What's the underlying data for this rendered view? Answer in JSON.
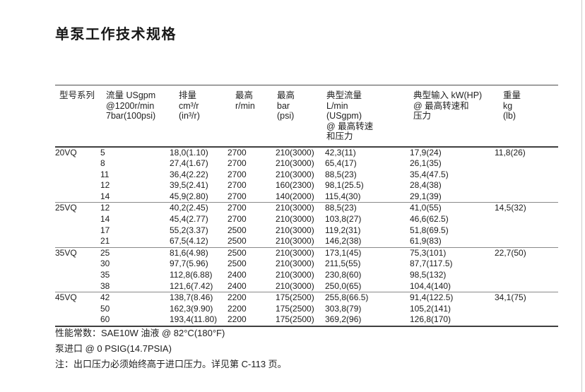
{
  "page": {
    "title": "单泵工作技术规格"
  },
  "table": {
    "headers": [
      {
        "lines": [
          "型号系列"
        ]
      },
      {
        "lines": [
          "流量 USgpm",
          "@1200r/min",
          "7bar(100psi)"
        ]
      },
      {
        "lines": [
          "排量",
          "cm³/r",
          "(in³/r)"
        ]
      },
      {
        "lines": [
          "最高",
          "r/min"
        ]
      },
      {
        "lines": [
          "最高",
          "bar",
          "(psi)"
        ]
      },
      {
        "lines": [
          "典型流量",
          "L/min",
          "(USgpm)",
          "@ 最高转速",
          "和压力"
        ]
      },
      {
        "lines": [
          "典型输入 kW(HP)",
          "@ 最高转速和",
          "压力"
        ]
      },
      {
        "lines": [
          "重量",
          "kg",
          "(lb)"
        ]
      }
    ],
    "sections": [
      {
        "model": "20VQ",
        "weight": "11,8(26)",
        "rows": [
          [
            "5",
            "18,0(1.10)",
            "2700",
            "210(3000)",
            "42,3(11)",
            "17,9(24)"
          ],
          [
            "8",
            "27,4(1.67)",
            "2700",
            "210(3000)",
            "65,4(17)",
            "26,1(35)"
          ],
          [
            "11",
            "36,4(2.22)",
            "2700",
            "210(3000)",
            "88,5(23)",
            "35,4(47.5)"
          ],
          [
            "12",
            "39,5(2.41)",
            "2700",
            "160(2300)",
            "98,1(25.5)",
            "28,4(38)"
          ],
          [
            "14",
            "45,9(2.80)",
            "2700",
            "140(2000)",
            "115,4(30)",
            "29,1(39)"
          ]
        ]
      },
      {
        "model": "25VQ",
        "weight": "14,5(32)",
        "rows": [
          [
            "12",
            "40,2(2.45)",
            "2700",
            "210(3000)",
            "88,5(23)",
            "41,0(55)"
          ],
          [
            "14",
            "45,4(2.77)",
            "2700",
            "210(3000)",
            "103,8(27)",
            "46,6(62.5)"
          ],
          [
            "17",
            "55,2(3.37)",
            "2500",
            "210(3000)",
            "119,2(31)",
            "51,8(69.5)"
          ],
          [
            "21",
            "67,5(4.12)",
            "2500",
            "210(3000)",
            "146,2(38)",
            "61,9(83)"
          ]
        ]
      },
      {
        "model": "35VQ",
        "weight": "22,7(50)",
        "rows": [
          [
            "25",
            "81,6(4.98)",
            "2500",
            "210(3000)",
            "173,1(45)",
            "75,3(101)"
          ],
          [
            "30",
            "97,7(5.96)",
            "2500",
            "210(3000)",
            "211,5(55)",
            "87,7(117.5)"
          ],
          [
            "35",
            "112,8(6.88)",
            "2400",
            "210(3000)",
            "230,8(60)",
            "98,5(132)"
          ],
          [
            "38",
            "121,6(7.42)",
            "2400",
            "210(3000)",
            "250,0(65)",
            "104,4(140)"
          ]
        ]
      },
      {
        "model": "45VQ",
        "weight": "34,1(75)",
        "rows": [
          [
            "42",
            "138,7(8.46)",
            "2200",
            "175(2500)",
            "255,8(66.5)",
            "91,4(122.5)"
          ],
          [
            "50",
            "162,3(9.90)",
            "2200",
            "175(2500)",
            "303,8(79)",
            "105,2(141)"
          ],
          [
            "60",
            "193,4(11.80)",
            "2200",
            "175(2500)",
            "369,2(96)",
            "126,8(170)"
          ]
        ]
      }
    ]
  },
  "notes": [
    "性能常数：SAE10W 油液 @ 82°C(180°F)",
    "泵进口 @ 0 PSIG(14.7PSIA)",
    "注：出口压力必须始终高于进口压力。详见第 C-113 页。"
  ]
}
